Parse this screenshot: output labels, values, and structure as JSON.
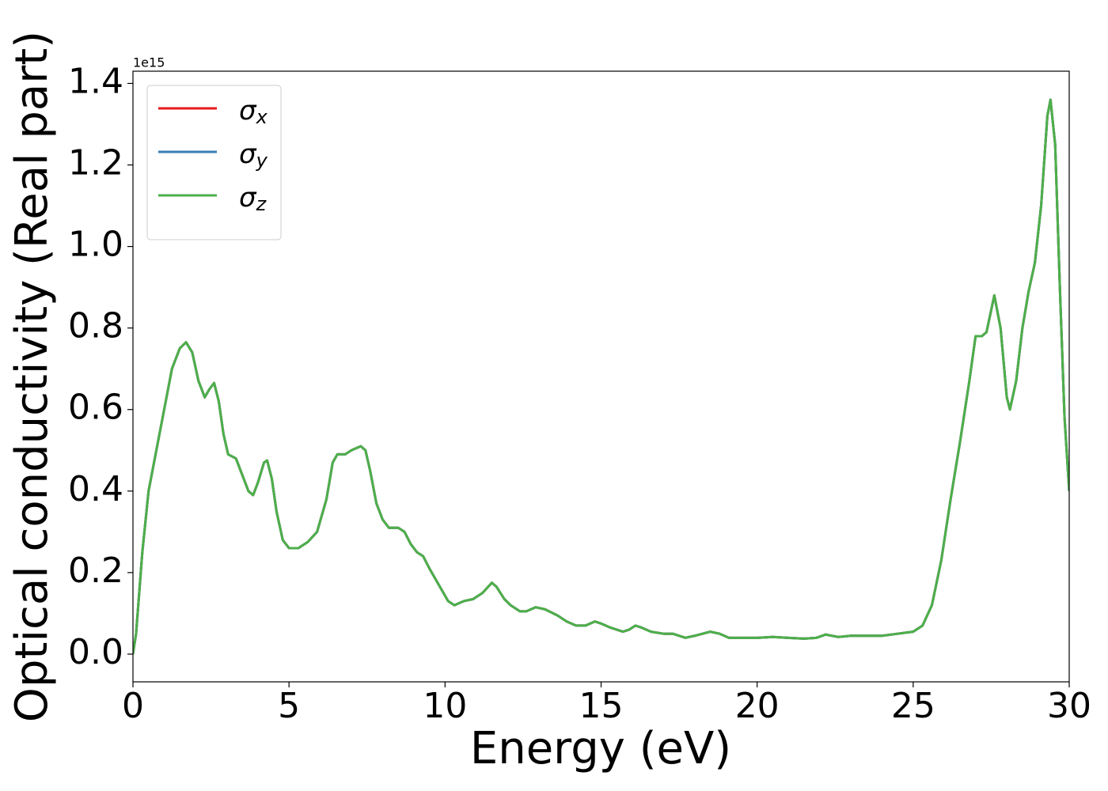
{
  "chart_data": {
    "type": "line",
    "xlabel": "Energy (eV)",
    "ylabel": "Optical conductivity (Real part)",
    "offset_text": "1e15",
    "x": [
      0,
      0.1,
      0.3,
      0.5,
      0.75,
      1.0,
      1.25,
      1.5,
      1.7,
      1.9,
      2.1,
      2.3,
      2.45,
      2.6,
      2.75,
      2.9,
      3.05,
      3.3,
      3.5,
      3.7,
      3.85,
      4.0,
      4.2,
      4.3,
      4.45,
      4.6,
      4.8,
      5.0,
      5.3,
      5.6,
      5.9,
      6.2,
      6.4,
      6.55,
      6.8,
      7.0,
      7.3,
      7.45,
      7.6,
      7.8,
      8.0,
      8.2,
      8.5,
      8.7,
      8.9,
      9.1,
      9.3,
      9.5,
      9.8,
      10.1,
      10.3,
      10.6,
      10.9,
      11.2,
      11.5,
      11.65,
      11.9,
      12.1,
      12.4,
      12.6,
      12.9,
      13.2,
      13.6,
      13.9,
      14.2,
      14.5,
      14.8,
      15.0,
      15.3,
      15.7,
      15.9,
      16.1,
      16.3,
      16.6,
      17.0,
      17.3,
      17.7,
      18.0,
      18.5,
      18.8,
      19.1,
      19.5,
      20.0,
      20.5,
      21.0,
      21.5,
      21.9,
      22.2,
      22.6,
      23.0,
      23.5,
      24.0,
      24.5,
      25.0,
      25.3,
      25.6,
      25.9,
      26.2,
      26.5,
      26.8,
      27.0,
      27.2,
      27.35,
      27.6,
      27.8,
      28.0,
      28.1,
      28.3,
      28.5,
      28.7,
      28.9,
      29.1,
      29.3,
      29.4,
      29.55,
      29.7,
      29.85,
      30.0
    ],
    "series": [
      {
        "name": "σx",
        "color": "#e41a1c",
        "values": [
          0,
          0.05,
          0.25,
          0.4,
          0.5,
          0.6,
          0.7,
          0.75,
          0.765,
          0.74,
          0.67,
          0.63,
          0.65,
          0.665,
          0.62,
          0.54,
          0.49,
          0.48,
          0.44,
          0.4,
          0.39,
          0.42,
          0.47,
          0.475,
          0.43,
          0.35,
          0.28,
          0.26,
          0.26,
          0.275,
          0.3,
          0.38,
          0.47,
          0.49,
          0.49,
          0.5,
          0.51,
          0.5,
          0.45,
          0.37,
          0.33,
          0.31,
          0.31,
          0.3,
          0.27,
          0.25,
          0.24,
          0.21,
          0.17,
          0.13,
          0.12,
          0.13,
          0.135,
          0.15,
          0.175,
          0.165,
          0.135,
          0.12,
          0.105,
          0.105,
          0.115,
          0.11,
          0.095,
          0.08,
          0.07,
          0.07,
          0.08,
          0.075,
          0.065,
          0.055,
          0.06,
          0.07,
          0.065,
          0.055,
          0.05,
          0.05,
          0.04,
          0.045,
          0.055,
          0.05,
          0.04,
          0.04,
          0.04,
          0.042,
          0.04,
          0.038,
          0.04,
          0.048,
          0.042,
          0.045,
          0.045,
          0.045,
          0.05,
          0.055,
          0.07,
          0.12,
          0.23,
          0.38,
          0.52,
          0.67,
          0.78,
          0.78,
          0.79,
          0.88,
          0.8,
          0.63,
          0.6,
          0.67,
          0.8,
          0.89,
          0.96,
          1.1,
          1.32,
          1.36,
          1.25,
          0.9,
          0.58,
          0.4
        ]
      },
      {
        "name": "σy",
        "color": "#377eb8",
        "values": [
          0,
          0.05,
          0.25,
          0.4,
          0.5,
          0.6,
          0.7,
          0.75,
          0.765,
          0.74,
          0.67,
          0.63,
          0.65,
          0.665,
          0.62,
          0.54,
          0.49,
          0.48,
          0.44,
          0.4,
          0.39,
          0.42,
          0.47,
          0.475,
          0.43,
          0.35,
          0.28,
          0.26,
          0.26,
          0.275,
          0.3,
          0.38,
          0.47,
          0.49,
          0.49,
          0.5,
          0.51,
          0.5,
          0.45,
          0.37,
          0.33,
          0.31,
          0.31,
          0.3,
          0.27,
          0.25,
          0.24,
          0.21,
          0.17,
          0.13,
          0.12,
          0.13,
          0.135,
          0.15,
          0.175,
          0.165,
          0.135,
          0.12,
          0.105,
          0.105,
          0.115,
          0.11,
          0.095,
          0.08,
          0.07,
          0.07,
          0.08,
          0.075,
          0.065,
          0.055,
          0.06,
          0.07,
          0.065,
          0.055,
          0.05,
          0.05,
          0.04,
          0.045,
          0.055,
          0.05,
          0.04,
          0.04,
          0.04,
          0.042,
          0.04,
          0.038,
          0.04,
          0.048,
          0.042,
          0.045,
          0.045,
          0.045,
          0.05,
          0.055,
          0.07,
          0.12,
          0.23,
          0.38,
          0.52,
          0.67,
          0.78,
          0.78,
          0.79,
          0.88,
          0.8,
          0.63,
          0.6,
          0.67,
          0.8,
          0.89,
          0.96,
          1.1,
          1.32,
          1.36,
          1.25,
          0.9,
          0.58,
          0.4
        ]
      },
      {
        "name": "σz",
        "color": "#4daf4a",
        "values": [
          0,
          0.05,
          0.25,
          0.4,
          0.5,
          0.6,
          0.7,
          0.75,
          0.765,
          0.74,
          0.67,
          0.63,
          0.65,
          0.665,
          0.62,
          0.54,
          0.49,
          0.48,
          0.44,
          0.4,
          0.39,
          0.42,
          0.47,
          0.475,
          0.43,
          0.35,
          0.28,
          0.26,
          0.26,
          0.275,
          0.3,
          0.38,
          0.47,
          0.49,
          0.49,
          0.5,
          0.51,
          0.5,
          0.45,
          0.37,
          0.33,
          0.31,
          0.31,
          0.3,
          0.27,
          0.25,
          0.24,
          0.21,
          0.17,
          0.13,
          0.12,
          0.13,
          0.135,
          0.15,
          0.175,
          0.165,
          0.135,
          0.12,
          0.105,
          0.105,
          0.115,
          0.11,
          0.095,
          0.08,
          0.07,
          0.07,
          0.08,
          0.075,
          0.065,
          0.055,
          0.06,
          0.07,
          0.065,
          0.055,
          0.05,
          0.05,
          0.04,
          0.045,
          0.055,
          0.05,
          0.04,
          0.04,
          0.04,
          0.042,
          0.04,
          0.038,
          0.04,
          0.048,
          0.042,
          0.045,
          0.045,
          0.045,
          0.05,
          0.055,
          0.07,
          0.12,
          0.23,
          0.38,
          0.52,
          0.67,
          0.78,
          0.78,
          0.79,
          0.88,
          0.8,
          0.63,
          0.6,
          0.67,
          0.8,
          0.89,
          0.96,
          1.1,
          1.32,
          1.36,
          1.25,
          0.9,
          0.58,
          0.4
        ]
      }
    ],
    "xlim": [
      0,
      30
    ],
    "xticks": [
      0,
      5,
      10,
      15,
      20,
      25,
      30
    ],
    "ylim": [
      -0.068,
      1.43
    ],
    "yticks": [
      {
        "value": 0,
        "label": "0.0"
      },
      0.2,
      0.4,
      0.6,
      0.8,
      {
        "value": 1,
        "label": "1.0"
      },
      1.2,
      1.4
    ],
    "grid": false,
    "legend": "upper left"
  }
}
